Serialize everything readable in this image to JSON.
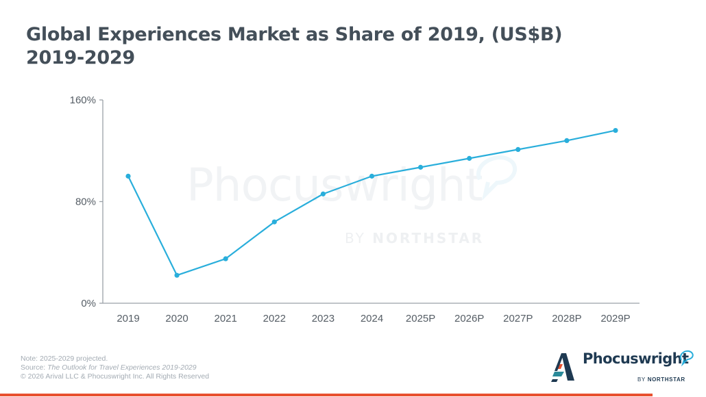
{
  "header": {
    "title_line1": "Global Experiences Market as Share of 2019, (US$B)",
    "title_line2": "2019-2029"
  },
  "watermark": {
    "brand": "Phocuswright",
    "by": "BY",
    "sub": "NORTHSTAR"
  },
  "chart_data": {
    "type": "line",
    "title": "Global Experiences Market as Share of 2019, (US$B) 2019-2029",
    "xlabel": "",
    "ylabel": "",
    "categories": [
      "2019",
      "2020",
      "2021",
      "2022",
      "2023",
      "2024",
      "2025P",
      "2026P",
      "2027P",
      "2028P",
      "2029P"
    ],
    "series": [
      {
        "name": "Share of 2019",
        "values": [
          100,
          22,
          35,
          64,
          86,
          100,
          107,
          114,
          121,
          128,
          136
        ],
        "color": "#29aedb",
        "markers": true
      }
    ],
    "y_ticks": [
      0,
      80,
      160
    ],
    "y_tick_labels": [
      "0%",
      "80%",
      "160%"
    ],
    "ylim": [
      0,
      160
    ],
    "grid": false,
    "legend": "none"
  },
  "footer": {
    "note": "Note: 2025-2029 projected.",
    "source_prefix": "Source: ",
    "source_title": "The Outlook for Travel Experiences 2019-2029",
    "copyright": "© 2026 Arival LLC & Phocuswright Inc. All Rights Reserved"
  },
  "logo": {
    "word": "Phocuswright",
    "by": "BY",
    "sub": "NORTHSTAR"
  },
  "colors": {
    "accent_line": "#29aedb",
    "title_text": "#444f59",
    "axis": "#9aa1a8",
    "brand_navy": "#1f3a52",
    "brand_red": "#e8512f",
    "brand_teal": "#2a8a9a"
  }
}
